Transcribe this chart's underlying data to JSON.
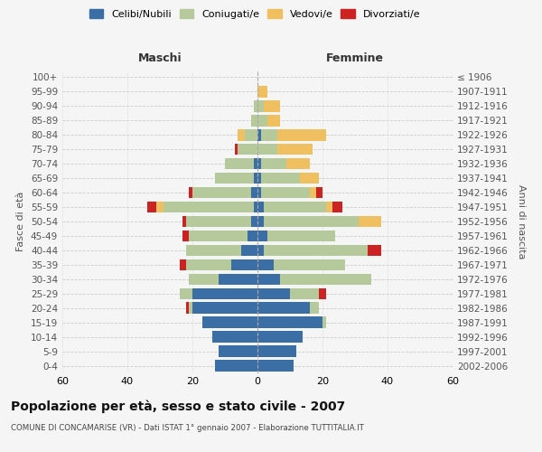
{
  "age_groups": [
    "0-4",
    "5-9",
    "10-14",
    "15-19",
    "20-24",
    "25-29",
    "30-34",
    "35-39",
    "40-44",
    "45-49",
    "50-54",
    "55-59",
    "60-64",
    "65-69",
    "70-74",
    "75-79",
    "80-84",
    "85-89",
    "90-94",
    "95-99",
    "100+"
  ],
  "birth_years": [
    "2002-2006",
    "1997-2001",
    "1992-1996",
    "1987-1991",
    "1982-1986",
    "1977-1981",
    "1972-1976",
    "1967-1971",
    "1962-1966",
    "1957-1961",
    "1952-1956",
    "1947-1951",
    "1942-1946",
    "1937-1941",
    "1932-1936",
    "1927-1931",
    "1922-1926",
    "1917-1921",
    "1912-1916",
    "1907-1911",
    "≤ 1906"
  ],
  "male_celibi": [
    13,
    12,
    14,
    17,
    20,
    20,
    12,
    8,
    5,
    3,
    2,
    1,
    2,
    1,
    1,
    0,
    0,
    0,
    0,
    0,
    0
  ],
  "male_coniugati": [
    0,
    0,
    0,
    0,
    1,
    4,
    9,
    14,
    17,
    18,
    20,
    28,
    18,
    12,
    9,
    6,
    4,
    2,
    1,
    0,
    0
  ],
  "male_vedovi": [
    0,
    0,
    0,
    0,
    0,
    0,
    0,
    0,
    0,
    0,
    0,
    2,
    0,
    0,
    0,
    0,
    2,
    0,
    0,
    0,
    0
  ],
  "male_divorziati": [
    0,
    0,
    0,
    0,
    1,
    0,
    0,
    2,
    0,
    2,
    1,
    3,
    1,
    0,
    0,
    1,
    0,
    0,
    0,
    0,
    0
  ],
  "female_celibi": [
    11,
    12,
    14,
    20,
    16,
    10,
    7,
    5,
    2,
    3,
    2,
    2,
    1,
    1,
    1,
    0,
    1,
    0,
    0,
    0,
    0
  ],
  "female_coniugati": [
    0,
    0,
    0,
    1,
    3,
    9,
    28,
    22,
    32,
    21,
    29,
    19,
    15,
    12,
    8,
    6,
    5,
    3,
    2,
    0,
    0
  ],
  "female_vedovi": [
    0,
    0,
    0,
    0,
    0,
    0,
    0,
    0,
    0,
    0,
    7,
    2,
    2,
    6,
    7,
    11,
    15,
    4,
    5,
    3,
    0
  ],
  "female_divorziati": [
    0,
    0,
    0,
    0,
    0,
    2,
    0,
    0,
    4,
    0,
    0,
    3,
    2,
    0,
    0,
    0,
    0,
    0,
    0,
    0,
    0
  ],
  "colors": {
    "celibi": "#3b6ea5",
    "coniugati": "#b5c99a",
    "vedovi": "#f0c060",
    "divorziati": "#cc2222"
  },
  "title": "Popolazione per età, sesso e stato civile - 2007",
  "subtitle": "COMUNE DI CONCAMARISE (VR) - Dati ISTAT 1° gennaio 2007 - Elaborazione TUTTITALIA.IT",
  "xlabel_left": "Maschi",
  "xlabel_right": "Femmine",
  "ylabel_left": "Fasce di età",
  "ylabel_right": "Anni di nascita",
  "xlim": 60,
  "background_color": "#f5f5f5",
  "grid_color": "#cccccc"
}
